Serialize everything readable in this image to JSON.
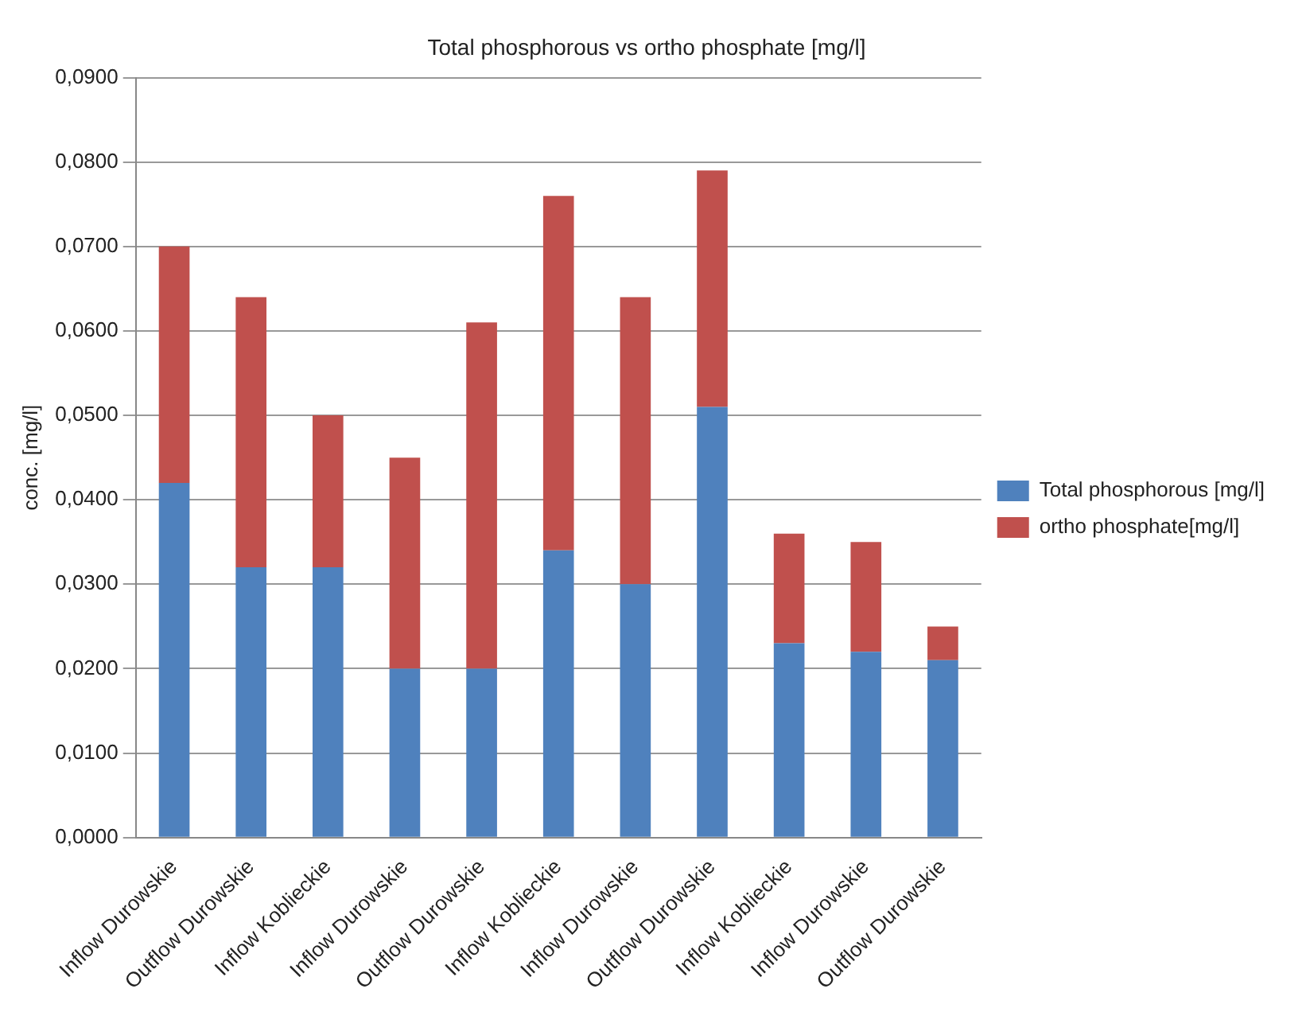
{
  "chart_data": {
    "type": "bar",
    "title": "Total phosphorous vs ortho phosphate [mg/l]",
    "ylabel": "conc. [mg/l]",
    "categories": [
      "Inflow Durowskie",
      "Outflow Durowskie",
      "Inflow Koblieckie",
      "Inflow Durowskie",
      "Outflow Durowskie",
      "Inflow Koblieckie",
      "Inflow Durowskie",
      "Outflow Durowskie",
      "Inflow Koblieckie",
      "Inflow Durowskie",
      "Outflow Durowskie"
    ],
    "series": [
      {
        "name": "Total phosphorous [mg/l]",
        "color": "#4f81bd",
        "values": [
          0.042,
          0.032,
          0.032,
          0.02,
          0.02,
          0.034,
          0.03,
          0.051,
          0.023,
          0.022,
          0.021
        ]
      },
      {
        "name": "ortho phosphate[mg/l]",
        "color": "#c0504d",
        "values": [
          0.028,
          0.032,
          0.018,
          0.025,
          0.041,
          0.042,
          0.034,
          0.028,
          0.013,
          0.013,
          0.004
        ]
      }
    ],
    "stacked": true,
    "ylim": [
      0,
      0.09
    ],
    "yticks": [
      {
        "value": 0,
        "label": "0,0000"
      },
      {
        "value": 0.01,
        "label": "0,0100"
      },
      {
        "value": 0.02,
        "label": "0,0200"
      },
      {
        "value": 0.03,
        "label": "0,0300"
      },
      {
        "value": 0.04,
        "label": "0,0400"
      },
      {
        "value": 0.05,
        "label": "0,0500"
      },
      {
        "value": 0.06,
        "label": "0,0600"
      },
      {
        "value": 0.07,
        "label": "0,0700"
      },
      {
        "value": 0.08,
        "label": "0,0800"
      },
      {
        "value": 0.09,
        "label": "0,0900"
      }
    ],
    "grid": "y",
    "legend": "right"
  }
}
